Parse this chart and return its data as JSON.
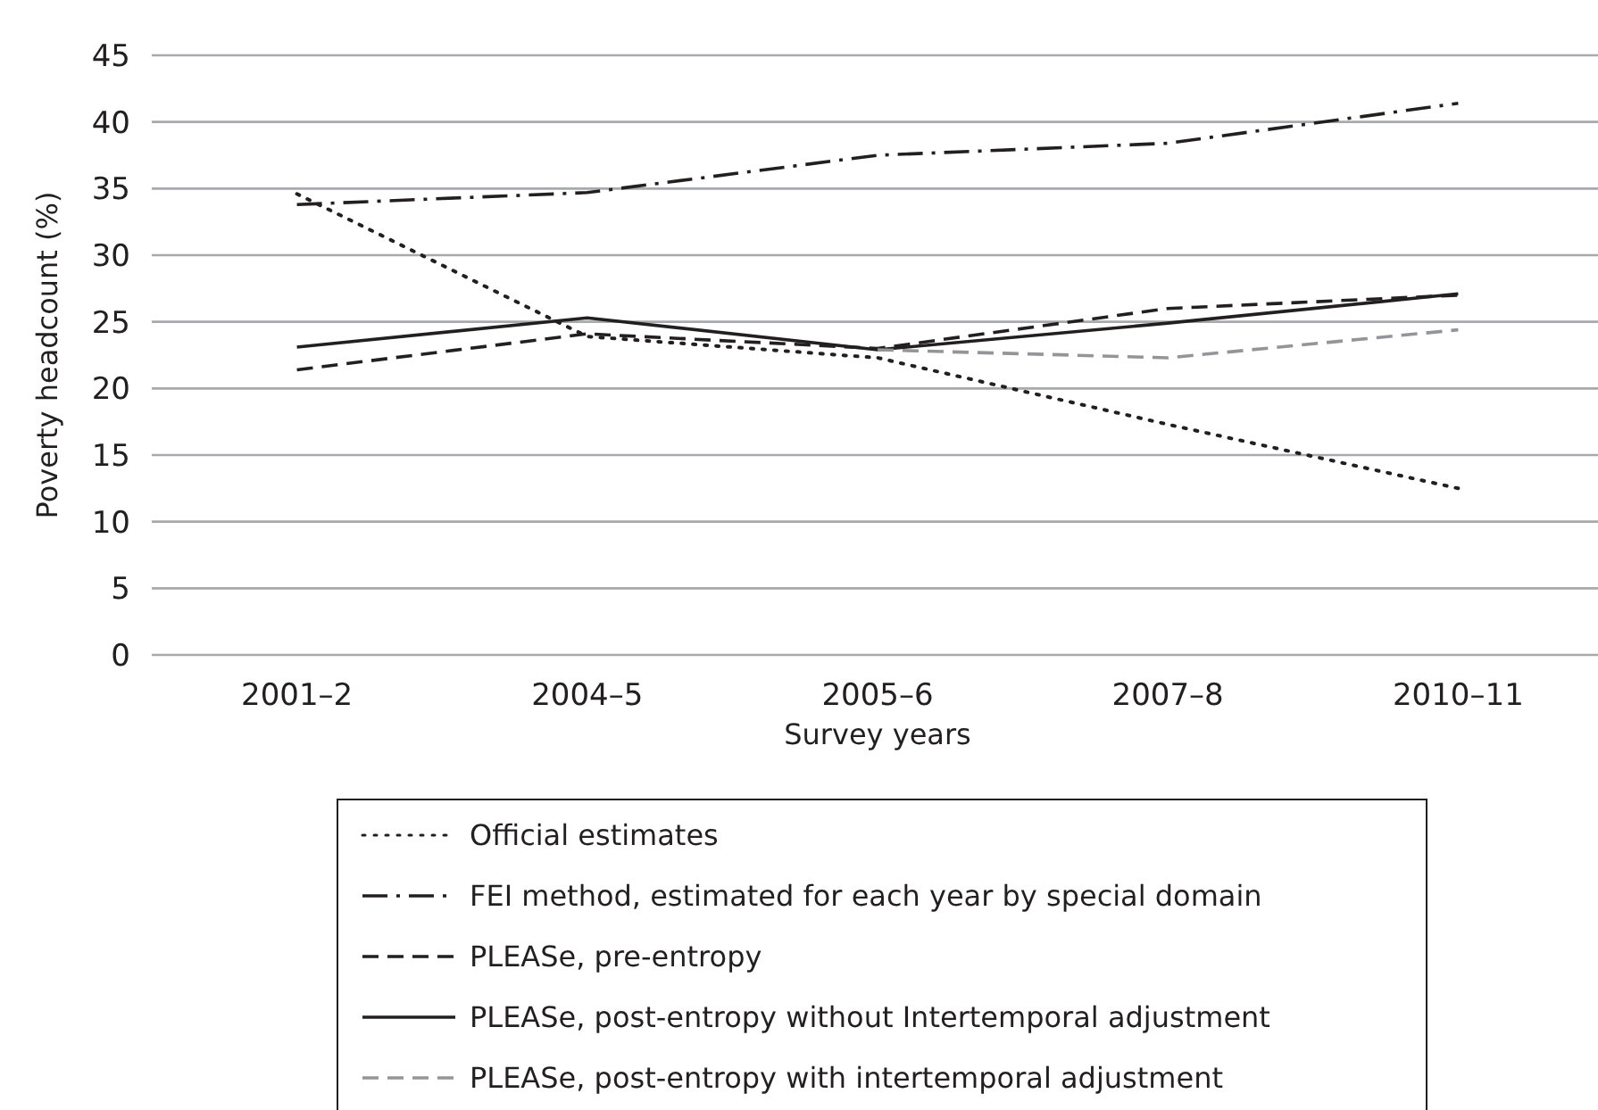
{
  "chart_data": {
    "type": "line",
    "xlabel": "Survey years",
    "ylabel": "Poverty headcount (%)",
    "categories": [
      "2001–2",
      "2004–5",
      "2005–6",
      "2007–8",
      "2010–11"
    ],
    "ylim": [
      0,
      45
    ],
    "yticks": [
      0,
      5,
      10,
      15,
      20,
      25,
      30,
      35,
      40,
      45
    ],
    "grid": "y",
    "legend": "bottom",
    "marker": "none",
    "series": [
      {
        "name": "Official estimates",
        "color": "#231f20",
        "line_style": "dotted",
        "values": [
          34.6,
          23.9,
          22.3,
          17.3,
          12.5
        ]
      },
      {
        "name": "FEI method, estimated for each year by special domain",
        "color": "#231f20",
        "line_style": "dashdot",
        "values": [
          33.8,
          34.7,
          37.5,
          38.4,
          41.4
        ]
      },
      {
        "name": "PLEASe, pre-entropy",
        "color": "#231f20",
        "line_style": "dashed",
        "values": [
          21.4,
          24.1,
          23.0,
          26.0,
          27.0
        ]
      },
      {
        "name": "PLEASe, post-entropy without Intertemporal adjustment",
        "color": "#231f20",
        "line_style": "solid",
        "values": [
          23.1,
          25.3,
          22.9,
          24.9,
          27.1
        ]
      },
      {
        "name": "PLEASe, post-entropy with intertemporal adjustment",
        "color": "#939598",
        "line_style": "dashed",
        "values": [
          null,
          null,
          22.9,
          22.3,
          24.4
        ]
      }
    ]
  }
}
